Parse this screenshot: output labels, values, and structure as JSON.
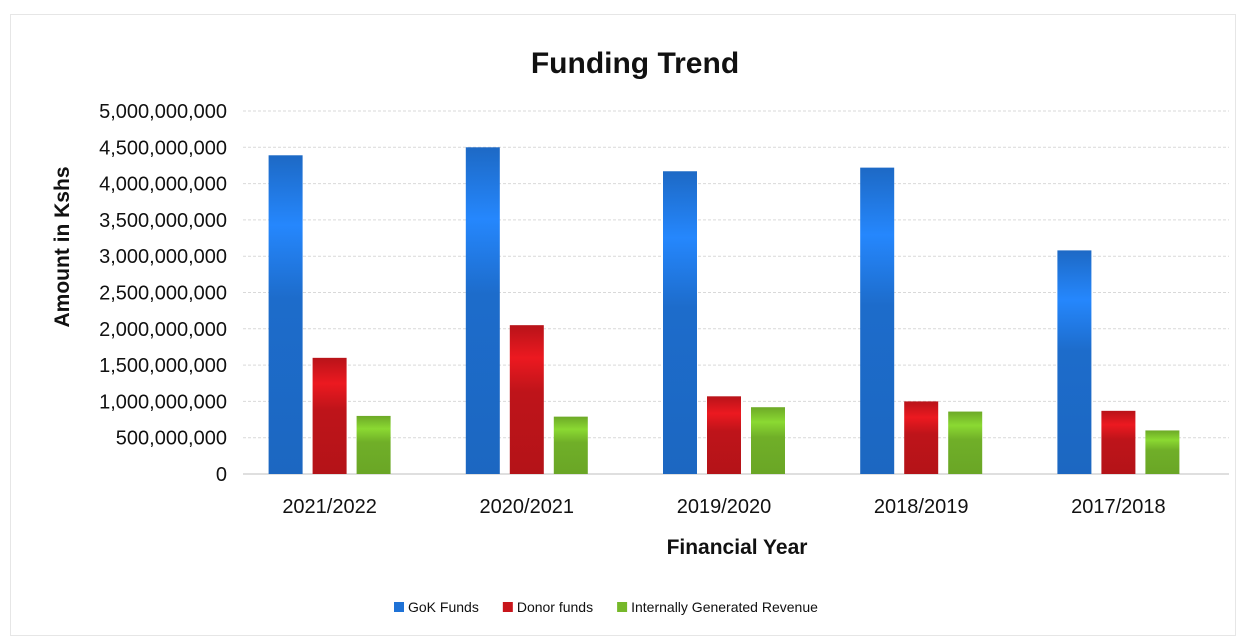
{
  "chart_data": {
    "type": "bar",
    "title": "Funding Trend",
    "xlabel": "Financial Year",
    "ylabel": "Amount in Kshs",
    "categories": [
      "2021/2022",
      "2020/2021",
      "2019/2020",
      "2018/2019",
      "2017/2018"
    ],
    "series": [
      {
        "name": "GoK Funds",
        "color": "#1f72d6",
        "values": [
          4390000000,
          4500000000,
          4170000000,
          4220000000,
          3080000000
        ]
      },
      {
        "name": "Donor funds",
        "color": "#c8151b",
        "values": [
          1600000000,
          2050000000,
          1070000000,
          1000000000,
          870000000
        ]
      },
      {
        "name": "Internally Generated Revenue",
        "color": "#76b82a",
        "values": [
          800000000,
          790000000,
          920000000,
          860000000,
          600000000
        ]
      }
    ],
    "ylim": [
      0,
      5000000000
    ],
    "yticks": [
      0,
      500000000,
      1000000000,
      1500000000,
      2000000000,
      2500000000,
      3000000000,
      3500000000,
      4000000000,
      4500000000,
      5000000000
    ],
    "ytick_labels": [
      "0",
      "500,000,000",
      "1,000,000,000",
      "1,500,000,000",
      "2,000,000,000",
      "2,500,000,000",
      "3,000,000,000",
      "3,500,000,000",
      "4,000,000,000",
      "4,500,000,000",
      "5,000,000,000"
    ],
    "grid": true,
    "legend_position": "bottom"
  }
}
